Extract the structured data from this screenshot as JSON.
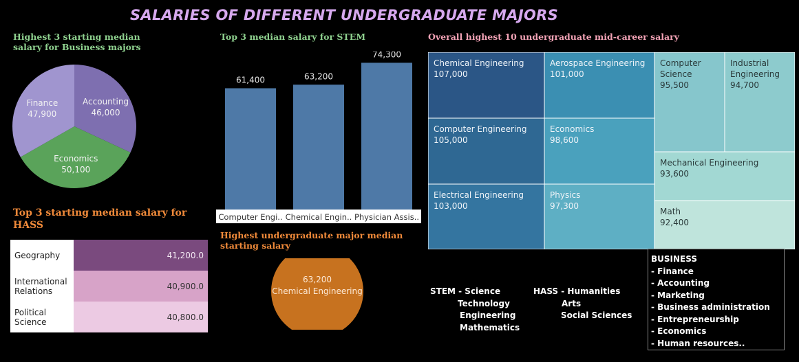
{
  "title": "SALARIES OF DIFFERENT UNDERGRADUATE MAJORS",
  "sections": {
    "business": "Highest 3 starting median salary for Business majors",
    "stem": "Top 3 median salary for STEM",
    "midcareer": "Overall highest 10 undergraduate mid-career salary",
    "hass": "Top 3 starting median salary for HASS",
    "highest": "Highest undergraduate major median starting salary"
  },
  "chart_data": [
    {
      "id": "business_pie",
      "type": "pie",
      "title": "Highest 3 starting median salary for Business majors",
      "slices": [
        {
          "label": "Accounting",
          "value_label": "46,000",
          "value": 46000,
          "color": "#7e6fb0"
        },
        {
          "label": "Economics",
          "value_label": "50,100",
          "value": 50100,
          "color": "#5aa35a"
        },
        {
          "label": "Finance",
          "value_label": "47,900",
          "value": 47900,
          "color": "#a095cf"
        }
      ]
    },
    {
      "id": "stem_bar",
      "type": "bar",
      "title": "Top 3 median salary for STEM",
      "categories": [
        "Computer Engi..",
        "Chemical Engin..",
        "Physician Assis.."
      ],
      "values": [
        61400,
        63200,
        74300
      ],
      "value_labels": [
        "61,400",
        "63,200",
        "74,300"
      ],
      "ylim": [
        0,
        80000
      ],
      "color": "#4e79a7"
    },
    {
      "id": "midcareer_treemap",
      "type": "treemap",
      "title": "Overall highest 10 undergraduate mid-career salary",
      "items": [
        {
          "label": "Chemical Engineering",
          "value": 107000,
          "value_label": "107,000",
          "color": "#2b5686"
        },
        {
          "label": "Computer Engineering",
          "value": 105000,
          "value_label": "105,000",
          "color": "#2f6893"
        },
        {
          "label": "Electrical Engineering",
          "value": 103000,
          "value_label": "103,000",
          "color": "#3475a0"
        },
        {
          "label": "Aerospace Engineering",
          "value": 101000,
          "value_label": "101,000",
          "color": "#3b8fb2"
        },
        {
          "label": "Economics",
          "value": 98600,
          "value_label": "98,600",
          "color": "#4aa1bd"
        },
        {
          "label": "Physics",
          "value": 97300,
          "value_label": "97,300",
          "color": "#5eafc4"
        },
        {
          "label": "Computer Science",
          "value": 95500,
          "value_label": "95,500",
          "color": "#86c6cc"
        },
        {
          "label": "Industrial Engineering",
          "value": 94700,
          "value_label": "94,700",
          "color": "#8dcbcd"
        },
        {
          "label": "Mechanical Engineering",
          "value": 93600,
          "value_label": "93,600",
          "color": "#a2d8d3"
        },
        {
          "label": "Math",
          "value": 92400,
          "value_label": "92,400",
          "color": "#bfe4dc"
        }
      ]
    },
    {
      "id": "hass_table",
      "type": "table",
      "title": "Top 3 starting median salary for HASS",
      "rows": [
        {
          "label": "Geography",
          "value": 41200.0,
          "value_label": "41,200.0",
          "color": "#7a4a7e"
        },
        {
          "label": "International Relations",
          "value": 40900.0,
          "value_label": "40,900.0",
          "color": "#d7a3c8"
        },
        {
          "label": "Political Science",
          "value": 40800.0,
          "value_label": "40,800.0",
          "color": "#eccae3"
        }
      ]
    },
    {
      "id": "highest_circle",
      "type": "pie",
      "title": "Highest undergraduate major median starting salary",
      "slices": [
        {
          "label": "Chemical Engineering",
          "value": 63200,
          "value_label": "63,200",
          "color": "#c7721f"
        }
      ]
    }
  ],
  "legend": {
    "stem": {
      "header": "STEM - Science",
      "items": [
        "Technology",
        "Engineering",
        "Mathematics"
      ]
    },
    "hass": {
      "header": "HASS - Humanities",
      "items": [
        "Arts",
        "Social Sciences"
      ]
    },
    "business": {
      "header": "BUSINESS",
      "items": [
        "- Finance",
        "- Accounting",
        "- Marketing",
        "- Business administration",
        "- Entrepreneurship",
        "- Economics",
        "- Human resources.."
      ]
    }
  }
}
